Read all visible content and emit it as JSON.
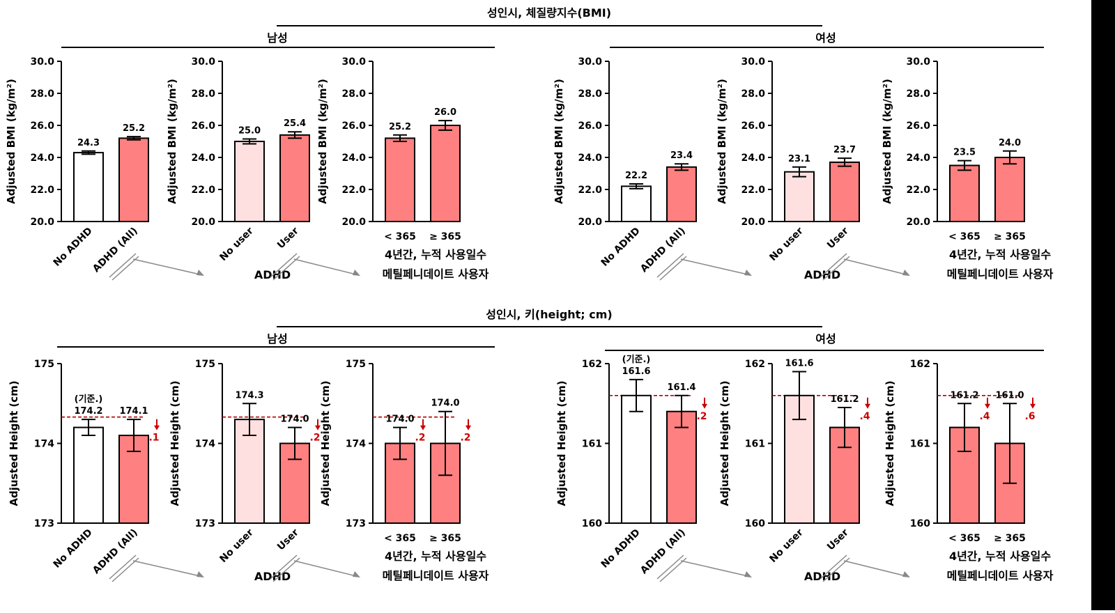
{
  "colors": {
    "bar_fill_dark": "#ff8080",
    "bar_fill_light": "#ffe0e0",
    "bar_fill_white": "#ffffff",
    "reference_line": "#b00000",
    "diff_text": "#cc0000",
    "arrow": "#888888"
  },
  "titles": {
    "bmi_title": "성인시, 체질량지수(BMI)",
    "height_title": "성인시, 키(height; cm)",
    "male": "남성",
    "female": "여성"
  },
  "labels": {
    "bmi_ylabel": "Adjusted BMI (kg/m²)",
    "height_ylabel": "Adjusted Height (cm)",
    "no_adhd": "No ADHD",
    "adhd_all": "ADHD (All)",
    "no_user": "No user",
    "user": "User",
    "adhd": "ADHD",
    "lt365": "< 365",
    "ge365": "≥ 365",
    "days_line1": "4년간, 누적 사용일수",
    "days_line2": "메틸페니데이트 사용자",
    "reference": "(기준.)"
  },
  "chart_data": [
    {
      "type": "bar",
      "section": "bmi",
      "sex": "남성",
      "categories": [
        "No ADHD",
        "ADHD (All)"
      ],
      "values": [
        24.3,
        25.2
      ],
      "value_labels": [
        "24.3",
        "25.2"
      ],
      "errors": [
        0.1,
        0.1
      ],
      "fills": [
        "white",
        "dark"
      ],
      "ylabel": "Adjusted BMI (kg/m²)",
      "ylim": [
        20,
        30
      ],
      "yticks": [
        "20.0",
        "22.0",
        "24.0",
        "26.0",
        "28.0",
        "30.0"
      ]
    },
    {
      "type": "bar",
      "section": "bmi",
      "sex": "남성",
      "categories": [
        "No user",
        "User"
      ],
      "values": [
        25.0,
        25.4
      ],
      "value_labels": [
        "25.0",
        "25.4"
      ],
      "errors": [
        0.15,
        0.2
      ],
      "fills": [
        "light",
        "dark"
      ],
      "ylabel": "Adjusted BMI (kg/m²)",
      "ylim": [
        20,
        30
      ],
      "yticks": [
        "20.0",
        "22.0",
        "24.0",
        "26.0",
        "28.0",
        "30.0"
      ]
    },
    {
      "type": "bar",
      "section": "bmi",
      "sex": "남성",
      "categories": [
        "< 365",
        "≥ 365"
      ],
      "values": [
        25.2,
        26.0
      ],
      "value_labels": [
        "25.2",
        "26.0"
      ],
      "errors": [
        0.2,
        0.3
      ],
      "fills": [
        "dark",
        "dark"
      ],
      "ylabel": "Adjusted BMI (kg/m²)",
      "ylim": [
        20,
        30
      ],
      "yticks": [
        "20.0",
        "22.0",
        "24.0",
        "26.0",
        "28.0",
        "30.0"
      ]
    },
    {
      "type": "bar",
      "section": "bmi",
      "sex": "여성",
      "categories": [
        "No ADHD",
        "ADHD (All)"
      ],
      "values": [
        22.2,
        23.4
      ],
      "value_labels": [
        "22.2",
        "23.4"
      ],
      "errors": [
        0.15,
        0.2
      ],
      "fills": [
        "white",
        "dark"
      ],
      "ylabel": "Adjusted BMI (kg/m²)",
      "ylim": [
        20,
        30
      ],
      "yticks": [
        "20.0",
        "22.0",
        "24.0",
        "26.0",
        "28.0",
        "30.0"
      ]
    },
    {
      "type": "bar",
      "section": "bmi",
      "sex": "여성",
      "categories": [
        "No user",
        "User"
      ],
      "values": [
        23.1,
        23.7
      ],
      "value_labels": [
        "23.1",
        "23.7"
      ],
      "errors": [
        0.3,
        0.25
      ],
      "fills": [
        "light",
        "dark"
      ],
      "ylabel": "Adjusted BMI (kg/m²)",
      "ylim": [
        20,
        30
      ],
      "yticks": [
        "20.0",
        "22.0",
        "24.0",
        "26.0",
        "28.0",
        "30.0"
      ]
    },
    {
      "type": "bar",
      "section": "bmi",
      "sex": "여성",
      "categories": [
        "< 365",
        "≥ 365"
      ],
      "values": [
        23.5,
        24.0
      ],
      "value_labels": [
        "23.5",
        "24.0"
      ],
      "errors": [
        0.3,
        0.4
      ],
      "fills": [
        "dark",
        "dark"
      ],
      "ylabel": "Adjusted BMI (kg/m²)",
      "ylim": [
        20,
        30
      ],
      "yticks": [
        "20.0",
        "22.0",
        "24.0",
        "26.0",
        "28.0",
        "30.0"
      ]
    },
    {
      "type": "bar",
      "section": "height",
      "sex": "남성",
      "categories": [
        "No ADHD",
        "ADHD (All)"
      ],
      "values": [
        174.2,
        174.1
      ],
      "value_labels": [
        "174.2",
        "174.1"
      ],
      "errors": [
        0.1,
        0.2
      ],
      "fills": [
        "white",
        "dark"
      ],
      "ylabel": "Adjusted Height (cm)",
      "ylim": [
        173,
        175
      ],
      "yticks": [
        "173",
        "174",
        "175"
      ],
      "reference": 174.33,
      "reference_label": "(기준.)",
      "diffs": [
        null,
        ".1"
      ]
    },
    {
      "type": "bar",
      "section": "height",
      "sex": "남성",
      "categories": [
        "No user",
        "User"
      ],
      "values": [
        174.3,
        174.0
      ],
      "value_labels": [
        "174.3",
        "174.0"
      ],
      "errors": [
        0.2,
        0.2
      ],
      "fills": [
        "light",
        "dark"
      ],
      "ylabel": "Adjusted Height (cm)",
      "ylim": [
        173,
        175
      ],
      "yticks": [
        "173",
        "174",
        "175"
      ],
      "reference": 174.33,
      "diffs": [
        null,
        ".2"
      ]
    },
    {
      "type": "bar",
      "section": "height",
      "sex": "남성",
      "categories": [
        "< 365",
        "≥ 365"
      ],
      "values": [
        174.0,
        174.0
      ],
      "value_labels": [
        "174.0",
        "174.0"
      ],
      "errors": [
        0.2,
        0.4
      ],
      "fills": [
        "dark",
        "dark"
      ],
      "ylabel": "Adjusted Height (cm)",
      "ylim": [
        173,
        175
      ],
      "yticks": [
        "173",
        "174",
        "175"
      ],
      "reference": 174.33,
      "diffs": [
        ".2",
        ".2"
      ]
    },
    {
      "type": "bar",
      "section": "height",
      "sex": "여성",
      "categories": [
        "No ADHD",
        "ADHD (All)"
      ],
      "values": [
        161.6,
        161.4
      ],
      "value_labels": [
        "161.6",
        "161.4"
      ],
      "errors": [
        0.2,
        0.2
      ],
      "fills": [
        "white",
        "dark"
      ],
      "ylabel": "Adjusted Height (cm)",
      "ylim": [
        160,
        162
      ],
      "yticks": [
        "160",
        "161",
        "162"
      ],
      "reference": 161.6,
      "reference_label": "(기준.)",
      "diffs": [
        null,
        ".2"
      ]
    },
    {
      "type": "bar",
      "section": "height",
      "sex": "여성",
      "categories": [
        "No user",
        "User"
      ],
      "values": [
        161.6,
        161.2
      ],
      "value_labels": [
        "161.6",
        "161.2"
      ],
      "errors": [
        0.3,
        0.25
      ],
      "fills": [
        "light",
        "dark"
      ],
      "ylabel": "Adjusted Height (cm)",
      "ylim": [
        160,
        162
      ],
      "yticks": [
        "160",
        "161",
        "162"
      ],
      "reference": 161.6,
      "diffs": [
        null,
        ".4"
      ]
    },
    {
      "type": "bar",
      "section": "height",
      "sex": "여성",
      "categories": [
        "< 365",
        "≥ 365"
      ],
      "values": [
        161.2,
        161.0
      ],
      "value_labels": [
        "161.2",
        "161.0"
      ],
      "errors": [
        0.3,
        0.5
      ],
      "fills": [
        "dark",
        "dark"
      ],
      "ylabel": "Adjusted Height (cm)",
      "ylim": [
        160,
        162
      ],
      "yticks": [
        "160",
        "161",
        "162"
      ],
      "reference": 161.6,
      "diffs": [
        ".4",
        ".6"
      ]
    }
  ]
}
